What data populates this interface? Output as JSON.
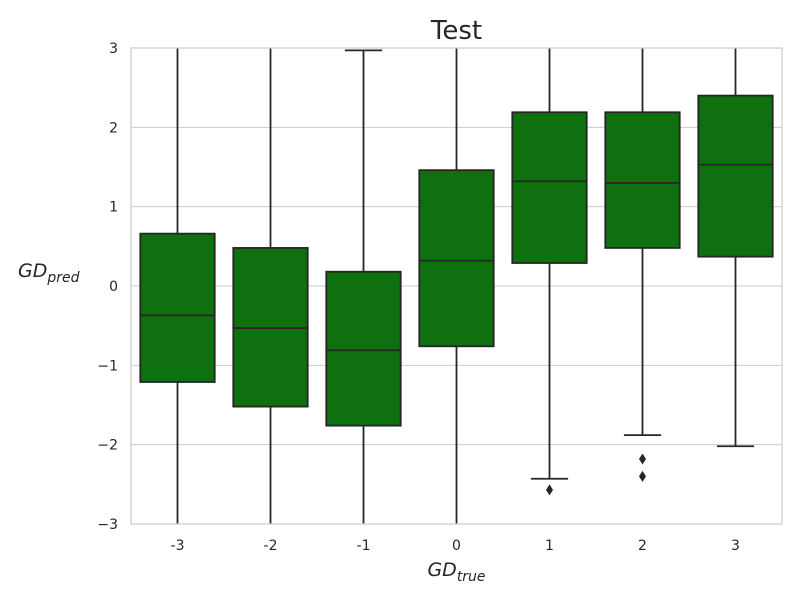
{
  "chart_data": {
    "type": "box",
    "title": "Test",
    "xlabel": {
      "main": "GD",
      "sub": "true"
    },
    "ylabel": {
      "main": "GD",
      "sub": "pred"
    },
    "ylim": [
      -3,
      3
    ],
    "yticks": [
      -3,
      -2,
      -1,
      0,
      1,
      2,
      3
    ],
    "ytick_labels": [
      "−3",
      "−2",
      "−1",
      "0",
      "1",
      "2",
      "3"
    ],
    "grid": "horizontal",
    "box_color": "#0e700e",
    "line_color": "#262626",
    "grid_color": "#cccccc",
    "categories": [
      "-3",
      "-2",
      "-1",
      "0",
      "1",
      "2",
      "3"
    ],
    "boxes": [
      {
        "category": "-3",
        "q1": -1.21,
        "median": -0.37,
        "q3": 0.66,
        "whisker_low": -3.0,
        "whisker_high": 3.0,
        "outliers": []
      },
      {
        "category": "-2",
        "q1": -1.52,
        "median": -0.53,
        "q3": 0.48,
        "whisker_low": -3.0,
        "whisker_high": 3.0,
        "outliers": []
      },
      {
        "category": "-1",
        "q1": -1.76,
        "median": -0.81,
        "q3": 0.18,
        "whisker_low": -3.0,
        "whisker_high": 2.97,
        "outliers": []
      },
      {
        "category": "0",
        "q1": -0.76,
        "median": 0.32,
        "q3": 1.46,
        "whisker_low": -3.0,
        "whisker_high": 3.0,
        "outliers": []
      },
      {
        "category": "1",
        "q1": 0.29,
        "median": 1.32,
        "q3": 2.19,
        "whisker_low": -2.43,
        "whisker_high": 3.0,
        "outliers": [
          -2.57
        ]
      },
      {
        "category": "2",
        "q1": 0.48,
        "median": 1.3,
        "q3": 2.19,
        "whisker_low": -1.88,
        "whisker_high": 3.0,
        "outliers": [
          -2.18,
          -2.4
        ]
      },
      {
        "category": "3",
        "q1": 0.37,
        "median": 1.53,
        "q3": 2.4,
        "whisker_low": -2.02,
        "whisker_high": 3.0,
        "outliers": []
      }
    ]
  }
}
